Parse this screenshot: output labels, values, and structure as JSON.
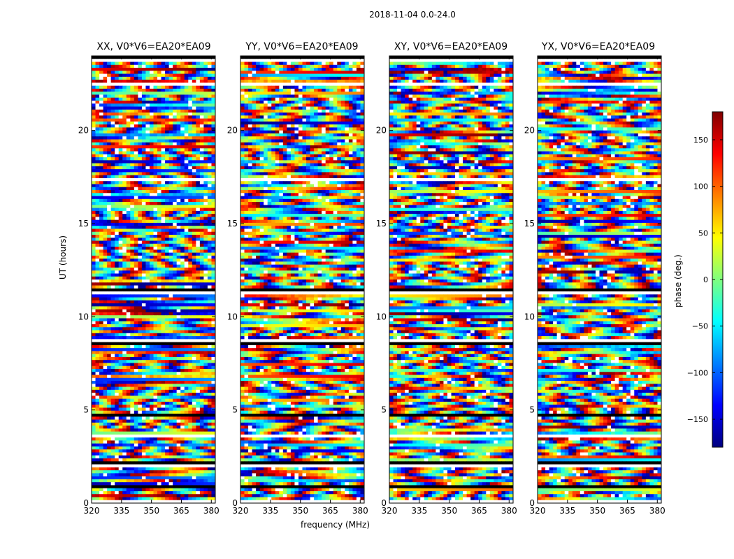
{
  "figure": {
    "title": "2018-11-04 0.0-24.0",
    "xlabel": "frequency (MHz)",
    "ylabel": "UT (hours)"
  },
  "chart_data": [
    {
      "type": "heatmap",
      "title": "XX, V0*V6=EA20*EA09",
      "xlim": [
        320,
        382
      ],
      "ylim": [
        0,
        24
      ],
      "xticks": [
        320,
        335,
        350,
        365,
        380
      ],
      "yticks": [
        0,
        5,
        10,
        15,
        20
      ],
      "value": "phase"
    },
    {
      "type": "heatmap",
      "title": "YY, V0*V6=EA20*EA09",
      "xlim": [
        320,
        382
      ],
      "ylim": [
        0,
        24
      ],
      "xticks": [
        320,
        335,
        350,
        365,
        380
      ],
      "yticks": [
        0,
        5,
        10,
        15,
        20
      ],
      "value": "phase"
    },
    {
      "type": "heatmap",
      "title": "XY, V0*V6=EA20*EA09",
      "xlim": [
        320,
        382
      ],
      "ylim": [
        0,
        24
      ],
      "xticks": [
        320,
        335,
        350,
        365,
        380
      ],
      "yticks": [
        0,
        5,
        10,
        15,
        20
      ],
      "value": "phase"
    },
    {
      "type": "heatmap",
      "title": "YX, V0*V6=EA20*EA09",
      "xlim": [
        320,
        382
      ],
      "ylim": [
        0,
        24
      ],
      "xticks": [
        320,
        335,
        350,
        365,
        380
      ],
      "yticks": [
        0,
        5,
        10,
        15,
        20
      ],
      "value": "phase"
    }
  ],
  "colorbar": {
    "label": "phase (deg.)",
    "range": [
      -180,
      180
    ],
    "ticks": [
      150,
      100,
      50,
      0,
      -50,
      -100,
      -150
    ],
    "tick_labels": [
      "150",
      "100",
      "50",
      "0",
      "−50",
      "−100",
      "−150"
    ],
    "colors": [
      "#00007f",
      "#0000ff",
      "#007fff",
      "#00ffff",
      "#7fff7f",
      "#ffff00",
      "#ff7f00",
      "#ff0000",
      "#7f0000"
    ]
  },
  "masked_utc_bands": [
    [
      0.05,
      0.15
    ],
    [
      0.8,
      0.9
    ],
    [
      1.2,
      1.3
    ],
    [
      1.85,
      2.0
    ],
    [
      2.1,
      2.25
    ],
    [
      3.5,
      3.7
    ],
    [
      4.6,
      4.75
    ],
    [
      8.55,
      8.75
    ],
    [
      11.25,
      11.55
    ],
    [
      17.3,
      17.45
    ],
    [
      19.0,
      19.1
    ],
    [
      22.4,
      22.6
    ],
    [
      23.75,
      24.0
    ]
  ]
}
